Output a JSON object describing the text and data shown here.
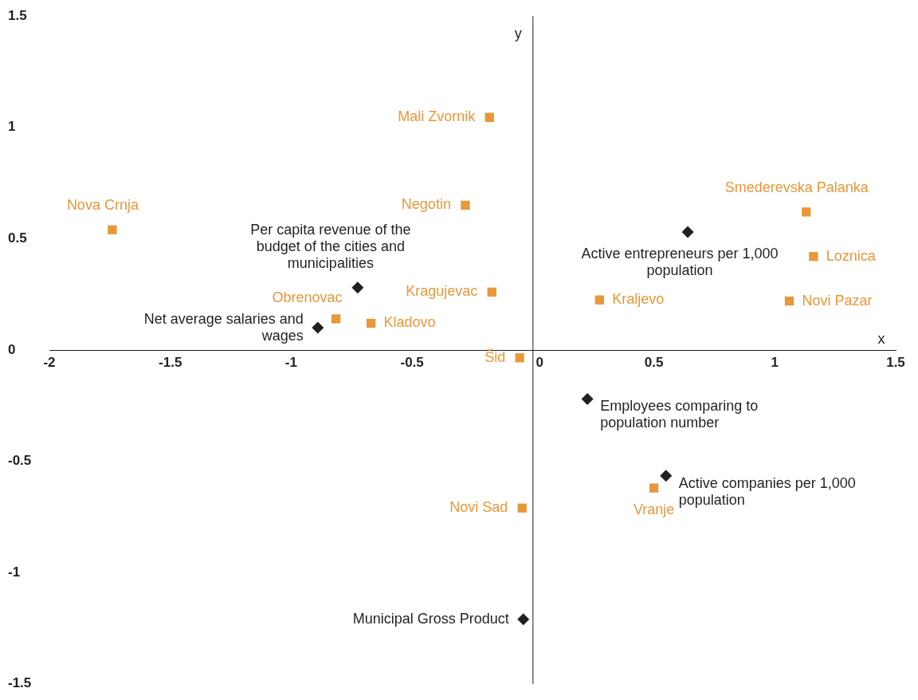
{
  "chart_data": {
    "type": "scatter",
    "xlabel": "x",
    "ylabel": "y",
    "xlim": [
      -2,
      1.5
    ],
    "xticks": [
      -2,
      -1.5,
      -1,
      -0.5,
      0,
      0.5,
      1,
      1.5
    ],
    "ylim": [
      -1.5,
      1.5
    ],
    "yticks": [
      -1.5,
      -1,
      -0.5,
      0,
      0.5,
      1,
      1.5
    ],
    "grid": false,
    "legend": false,
    "ref_lines": [
      {
        "axis": "x",
        "value": 0,
        "color": "#231f20"
      }
    ],
    "series": [
      {
        "color": "#e8973a",
        "marker": "square",
        "x": [
          -0.18,
          -1.74,
          -0.28,
          1.13,
          1.16,
          -0.17,
          0.275,
          1.06,
          -0.815,
          -0.67,
          -0.055,
          0.5,
          -0.045
        ],
        "values": [
          1.045,
          0.54,
          0.65,
          0.62,
          0.42,
          0.26,
          0.225,
          0.22,
          0.14,
          0.12,
          -0.035,
          -0.62,
          -0.71
        ]
      },
      {
        "color": "#231f20",
        "marker": "diamond",
        "x": [
          -0.725,
          -0.89,
          0.64,
          0.225,
          0.55,
          -0.04
        ],
        "values": [
          0.28,
          0.1,
          0.53,
          -0.22,
          -0.565,
          -1.21
        ]
      }
    ],
    "annotations": [
      {
        "text": "Mali Zvornik",
        "x": -0.18,
        "y": 1.045
      },
      {
        "text": "Nova Crnja",
        "x": -1.74,
        "y": 0.54
      },
      {
        "text": "Negotin",
        "x": -0.28,
        "y": 0.65
      },
      {
        "text": "Smederevska Palanka",
        "x": 1.13,
        "y": 0.62
      },
      {
        "text": "Loznica",
        "x": 1.16,
        "y": 0.42
      },
      {
        "text": "Kragujevac",
        "x": -0.17,
        "y": 0.26
      },
      {
        "text": "Kraljevo",
        "x": 0.275,
        "y": 0.225
      },
      {
        "text": "Novi Pazar",
        "x": 1.06,
        "y": 0.22
      },
      {
        "text": "Obrenovac",
        "x": -0.815,
        "y": 0.14
      },
      {
        "text": "Kladovo",
        "x": -0.67,
        "y": 0.12
      },
      {
        "text": "Šid",
        "x": -0.055,
        "y": -0.035
      },
      {
        "text": "Vranje",
        "x": 0.5,
        "y": -0.62
      },
      {
        "text": "Novi Sad",
        "x": -0.045,
        "y": -0.71
      },
      {
        "text": "Per capita revenue of the budget of the cities and municipalities",
        "x": -0.725,
        "y": 0.28
      },
      {
        "text": "Net average salaries and wages",
        "x": -0.89,
        "y": 0.1
      },
      {
        "text": "Active entrepreneurs per 1,000 population",
        "x": 0.64,
        "y": 0.53
      },
      {
        "text": "Employees comparing to population number",
        "x": 0.225,
        "y": -0.22
      },
      {
        "text": "Active companies per 1,000 population",
        "x": 0.55,
        "y": -0.565
      },
      {
        "text": "Municipal Gross Product",
        "x": -0.04,
        "y": -1.21
      }
    ]
  }
}
